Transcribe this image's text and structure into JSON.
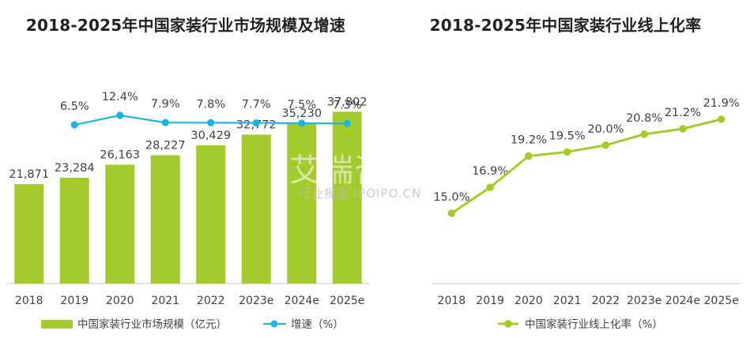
{
  "charts": {
    "left": {
      "title": "2018-2025年中国家装行业市场规模及增速",
      "legend_bar": "中国家装行业市场规模（亿元）",
      "legend_line": "增速（%）"
    },
    "right": {
      "title": "2018-2025年中国家装行业线上化率",
      "legend_line": "中国家装行业线上化率（%）"
    }
  },
  "watermark": {
    "main": "艾瑞咨询研究",
    "sub": "行业报告 IPOIPO.CN"
  },
  "colors": {
    "bar": "#a4cb2e",
    "growth_line": "#1fb4e6",
    "online_line": "#a4cb2e",
    "axis": "#bfbfbf"
  },
  "chart_data": [
    {
      "type": "bar",
      "title": "2018-2025年中国家装行业市场规模及增速",
      "categories": [
        "2018",
        "2019",
        "2020",
        "2021",
        "2022",
        "2023e",
        "2024e",
        "2025e"
      ],
      "series": [
        {
          "name": "中国家装行业市场规模（亿元）",
          "type": "bar",
          "values": [
            21871,
            23284,
            26163,
            28227,
            30429,
            32772,
            35230,
            37802
          ],
          "labels": [
            "21,871",
            "23,284",
            "26,163",
            "28,227",
            "30,429",
            "32,772",
            "35,230",
            "37,802"
          ]
        },
        {
          "name": "增速（%）",
          "type": "line",
          "values": [
            null,
            6.5,
            12.4,
            7.9,
            7.8,
            7.7,
            7.5,
            7.3
          ],
          "labels": [
            "",
            "6.5%",
            "12.4%",
            "7.9%",
            "7.8%",
            "7.7%",
            "7.5%",
            "7.3%"
          ]
        }
      ],
      "ylim": [
        0,
        45000
      ],
      "legend_position": "bottom"
    },
    {
      "type": "line",
      "title": "2018-2025年中国家装行业线上化率",
      "categories": [
        "2018",
        "2019",
        "2020",
        "2021",
        "2022",
        "2023e",
        "2024e",
        "2025e"
      ],
      "series": [
        {
          "name": "中国家装行业线上化率（%）",
          "values": [
            15.0,
            16.9,
            19.2,
            19.5,
            20.0,
            20.8,
            21.2,
            21.9
          ],
          "labels": [
            "15.0%",
            "16.9%",
            "19.2%",
            "19.5%",
            "20.0%",
            "20.8%",
            "21.2%",
            "21.9%"
          ]
        }
      ],
      "ylim": [
        11,
        22.8
      ],
      "legend_position": "bottom"
    }
  ]
}
